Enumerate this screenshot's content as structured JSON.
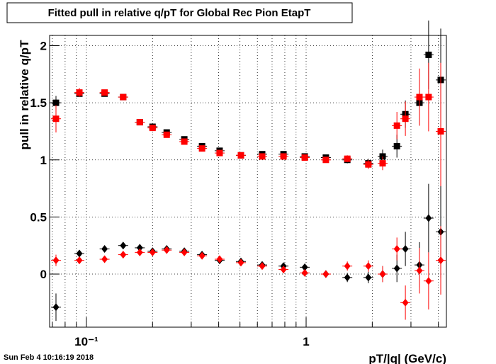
{
  "chart_data": {
    "type": "scatter",
    "title": "Fitted pull in relative q/pT for Global Rec Pion EtapT",
    "x_label": "pT/|q| (GeV/c)",
    "y_label": "pull in relative q/pT",
    "footer": "Sun Feb  4 10:16:19 2018",
    "log_x": true,
    "grid": true,
    "xlim": [
      0.068,
      4.35
    ],
    "ylim": [
      -0.465,
      2.09
    ],
    "xticks": [
      {
        "value": 0.1,
        "label": "10⁻¹"
      },
      1
    ],
    "x_minor_ticks": [
      0.07,
      0.08,
      0.09,
      0.2,
      0.3,
      0.4,
      0.5,
      0.6,
      0.7,
      0.8,
      0.9,
      2,
      3,
      4
    ],
    "yticks": [
      0,
      0.5,
      1,
      1.5,
      2
    ],
    "x": [
      0.0727,
      0.0929,
      0.121,
      0.147,
      0.175,
      0.2,
      0.232,
      0.279,
      0.336,
      0.404,
      0.505,
      0.631,
      0.789,
      0.986,
      1.23,
      1.54,
      1.92,
      2.23,
      2.59,
      2.83,
      3.28,
      3.61,
      4.1
    ],
    "series": [
      {
        "name": "black-squares",
        "color": "#000000",
        "marker": "square",
        "values": [
          1.5,
          1.58,
          1.58,
          1.55,
          1.33,
          1.29,
          1.24,
          1.18,
          1.12,
          1.08,
          1.04,
          1.05,
          1.05,
          1.03,
          1.02,
          1.0,
          0.97,
          1.03,
          1.12,
          1.4,
          1.5,
          1.92,
          1.7
        ],
        "errors": [
          0.06,
          0.03,
          0.02,
          0.02,
          0.01,
          0.01,
          0.01,
          0.01,
          0.01,
          0.01,
          0.01,
          0.01,
          0.01,
          0.02,
          0.02,
          0.03,
          0.04,
          0.06,
          0.1,
          0.12,
          0.2,
          0.3,
          0.45
        ]
      },
      {
        "name": "red-squares",
        "color": "#ff0000",
        "marker": "square",
        "values": [
          1.36,
          1.59,
          1.59,
          1.55,
          1.33,
          1.28,
          1.22,
          1.16,
          1.1,
          1.06,
          1.04,
          1.03,
          1.03,
          1.02,
          1.0,
          1.01,
          0.96,
          0.97,
          1.3,
          1.36,
          1.55,
          1.55,
          1.25
        ],
        "errors": [
          0.12,
          0.04,
          0.02,
          0.02,
          0.01,
          0.01,
          0.01,
          0.01,
          0.01,
          0.01,
          0.01,
          0.01,
          0.01,
          0.02,
          0.02,
          0.03,
          0.04,
          0.06,
          0.12,
          0.15,
          0.25,
          0.3,
          0.6
        ]
      },
      {
        "name": "black-diamonds",
        "color": "#000000",
        "marker": "diamond",
        "values": [
          -0.29,
          0.18,
          0.22,
          0.25,
          0.23,
          0.2,
          0.22,
          0.2,
          0.17,
          0.12,
          0.11,
          0.08,
          0.07,
          0.06,
          0.0,
          -0.03,
          -0.03,
          0.0,
          0.05,
          0.22,
          0.08,
          0.49,
          0.37
        ],
        "errors": [
          0.12,
          0.03,
          0.02,
          0.02,
          0.01,
          0.01,
          0.01,
          0.01,
          0.01,
          0.01,
          0.01,
          0.01,
          0.02,
          0.02,
          0.03,
          0.04,
          0.05,
          0.07,
          0.12,
          0.15,
          0.2,
          0.3,
          0.4
        ]
      },
      {
        "name": "red-diamonds",
        "color": "#ff0000",
        "marker": "diamond",
        "values": [
          0.12,
          0.12,
          0.13,
          0.17,
          0.19,
          0.19,
          0.21,
          0.19,
          0.16,
          0.13,
          0.1,
          0.07,
          0.04,
          0.01,
          0.0,
          0.07,
          0.07,
          0.0,
          0.22,
          -0.25,
          0.03,
          -0.06,
          0.12
        ],
        "errors": [
          0.05,
          0.03,
          0.02,
          0.02,
          0.01,
          0.01,
          0.01,
          0.01,
          0.01,
          0.01,
          0.01,
          0.01,
          0.02,
          0.02,
          0.03,
          0.04,
          0.05,
          0.07,
          0.1,
          0.15,
          0.2,
          0.25,
          0.3
        ]
      }
    ]
  }
}
